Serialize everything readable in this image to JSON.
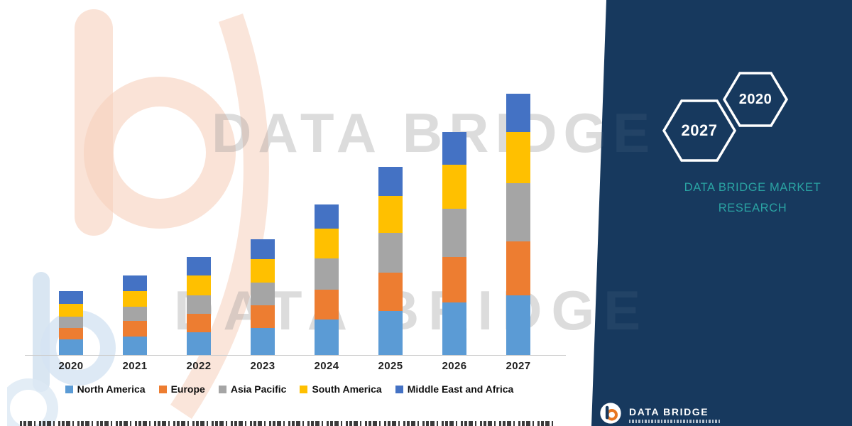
{
  "watermark": {
    "row1": "DATA BRIDGE",
    "row2": "DATA BRIDGE"
  },
  "panel": {
    "background_color": "#17395E",
    "accent_color": "#2AA3A3",
    "hexagons": [
      {
        "year": "2027"
      },
      {
        "year": "2020"
      }
    ],
    "brand_line1": "DATA BRIDGE MARKET",
    "brand_line2": "RESEARCH"
  },
  "footer": {
    "brand_text": "DATA BRIDGE"
  },
  "chart_data": {
    "type": "bar",
    "stacked": true,
    "title": "",
    "xlabel": "",
    "ylabel": "",
    "grid": false,
    "value_axis_visible": false,
    "note": "No value axis shown in image; series values are relative estimates read from bar segment heights.",
    "legend_position": "bottom",
    "ylim": [
      0,
      8
    ],
    "categories": [
      "2020",
      "2021",
      "2022",
      "2023",
      "2024",
      "2025",
      "2026",
      "2027"
    ],
    "series": [
      {
        "name": "North America",
        "color": "#5B9BD5",
        "values": [
          0.44,
          0.52,
          0.64,
          0.76,
          1.0,
          1.24,
          1.48,
          1.68
        ]
      },
      {
        "name": "Europe",
        "color": "#ED7D31",
        "values": [
          0.32,
          0.44,
          0.52,
          0.64,
          0.84,
          1.08,
          1.28,
          1.52
        ]
      },
      {
        "name": "Asia Pacific",
        "color": "#A5A5A5",
        "values": [
          0.32,
          0.4,
          0.52,
          0.64,
          0.88,
          1.12,
          1.36,
          1.64
        ]
      },
      {
        "name": "South America",
        "color": "#FFC000",
        "values": [
          0.36,
          0.44,
          0.56,
          0.66,
          0.84,
          1.04,
          1.24,
          1.44
        ]
      },
      {
        "name": "Middle East and Africa",
        "color": "#4472C4",
        "values": [
          0.36,
          0.44,
          0.52,
          0.56,
          0.68,
          0.82,
          0.92,
          1.08
        ]
      }
    ],
    "totals": [
      1.8,
      2.24,
      2.76,
      3.26,
      4.24,
      5.3,
      6.28,
      7.36
    ]
  }
}
